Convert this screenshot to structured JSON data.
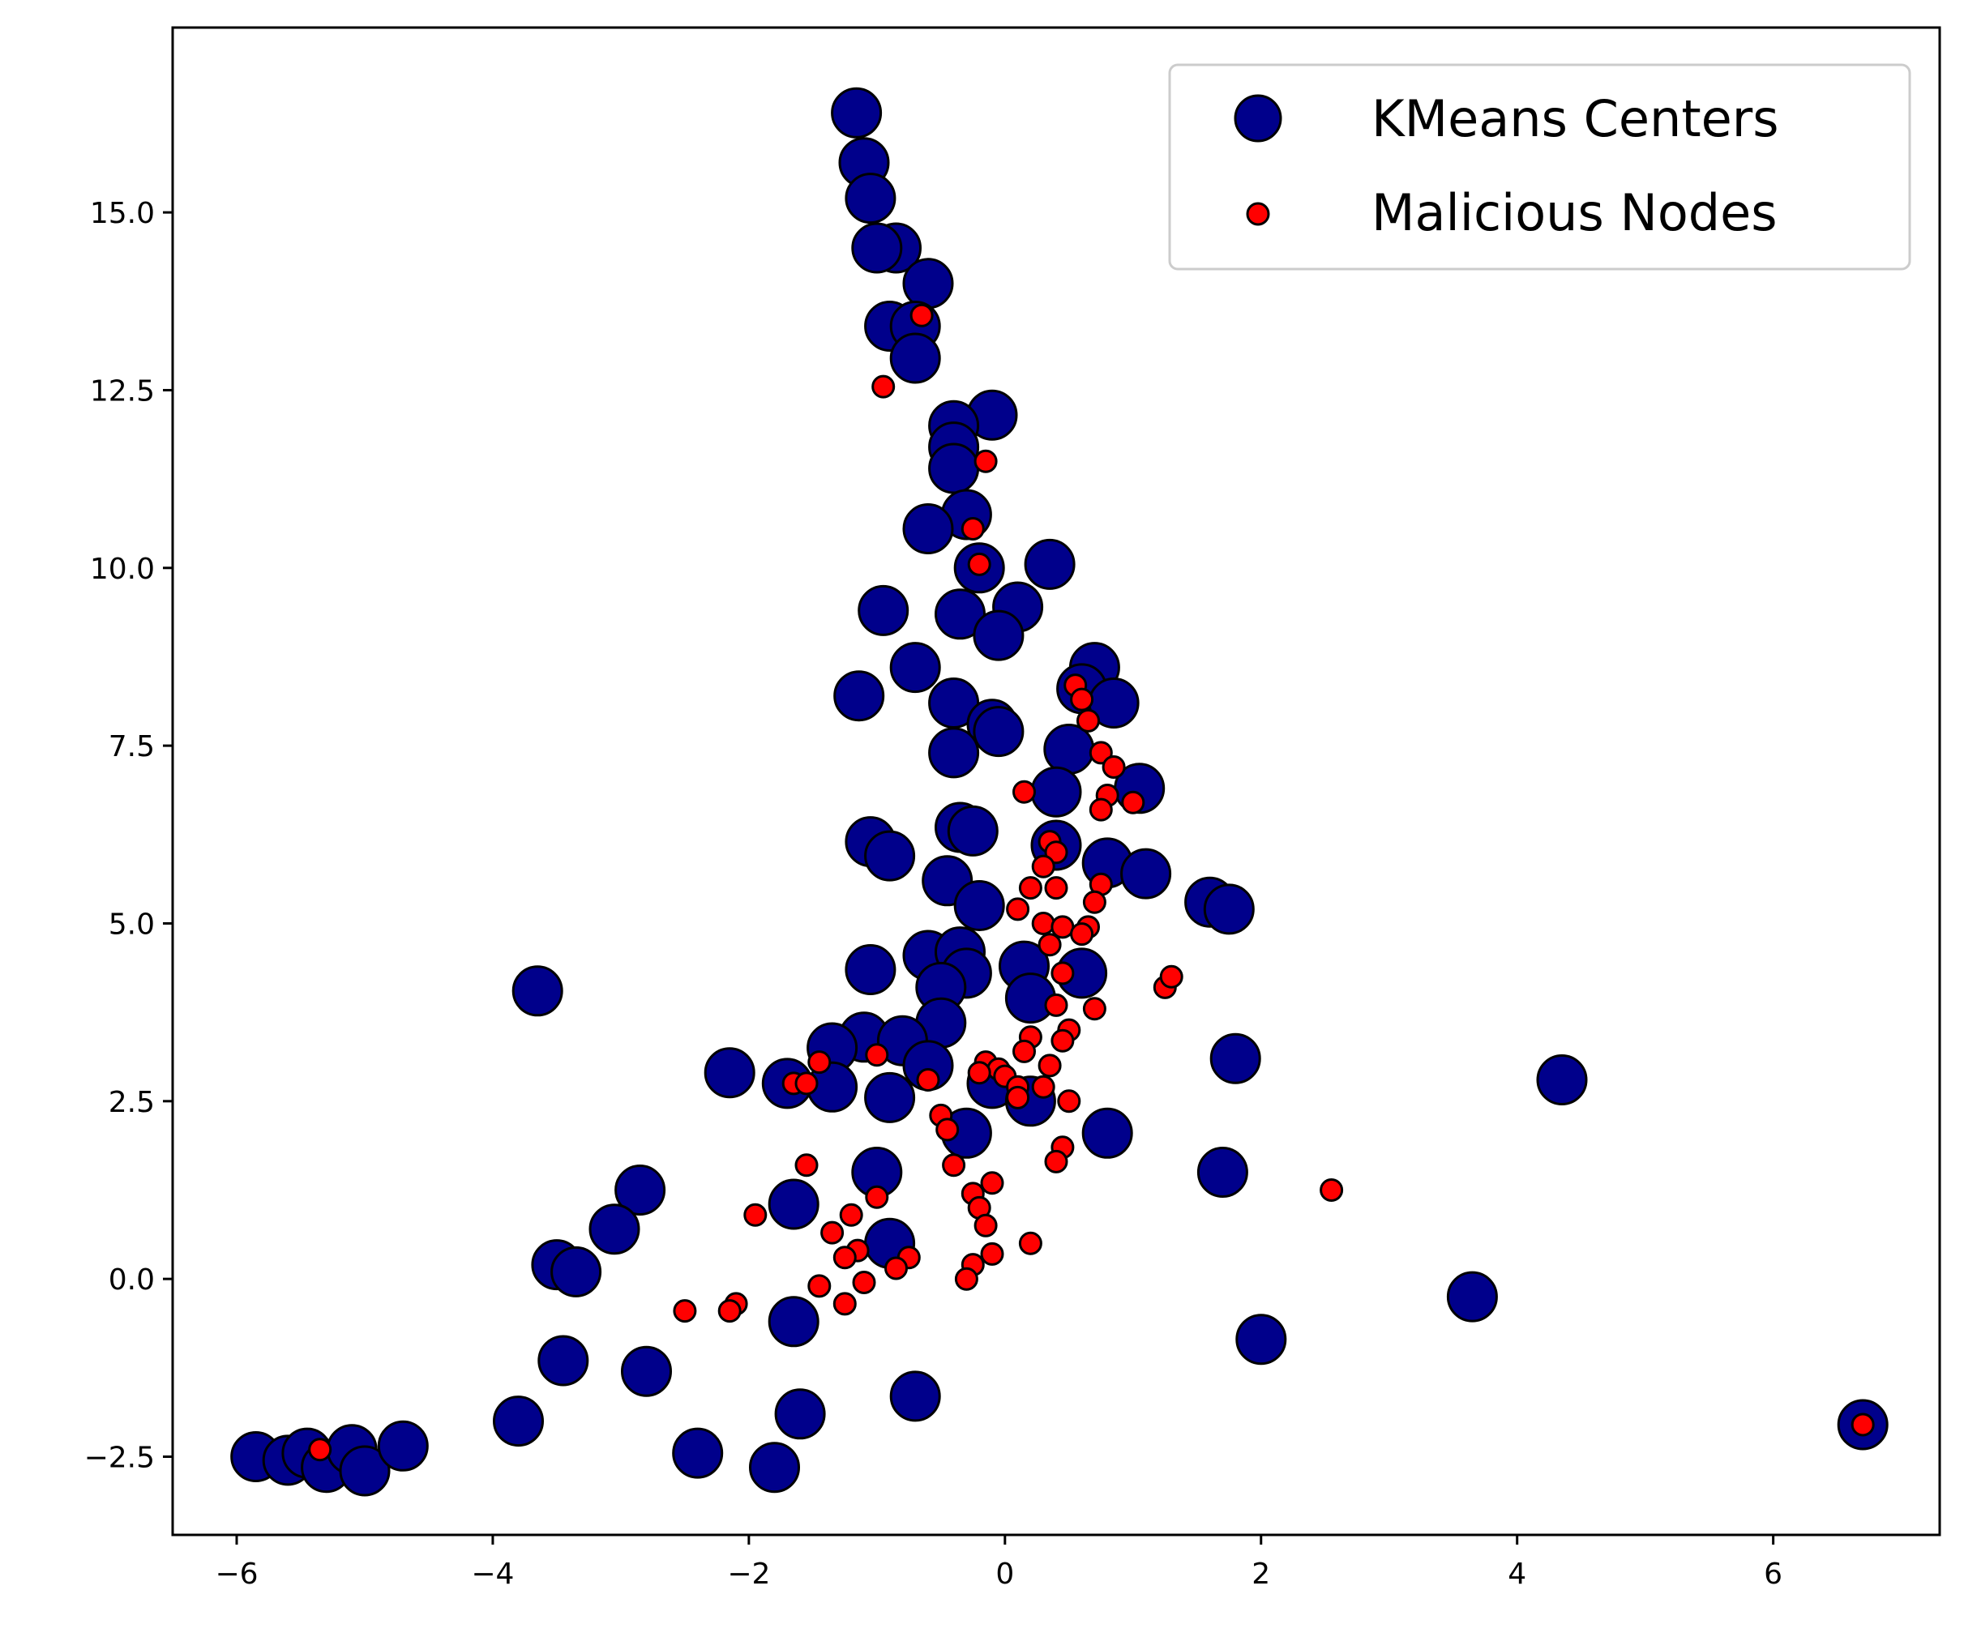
{
  "chart_data": {
    "type": "scatter",
    "title": "",
    "xlabel": "",
    "ylabel": "",
    "xlim": [
      -6.5,
      7.3
    ],
    "ylim": [
      -3.6,
      17.6
    ],
    "grid": false,
    "legend_position": "top-right",
    "x_ticks": [
      -6,
      -4,
      -2,
      0,
      2,
      4,
      6
    ],
    "x_tick_labels": [
      "−6",
      "−4",
      "−2",
      "0",
      "2",
      "4",
      "6"
    ],
    "y_ticks": [
      -2.5,
      0.0,
      2.5,
      5.0,
      7.5,
      10.0,
      12.5,
      15.0
    ],
    "y_tick_labels": [
      "−2.5",
      "0.0",
      "2.5",
      "5.0",
      "7.5",
      "10.0",
      "12.5",
      "15.0"
    ],
    "series": [
      {
        "name": "KMeans Centers",
        "color": "#00008b",
        "edge_color": "#000000",
        "marker_size": "large",
        "points": [
          [
            -1.16,
            16.4
          ],
          [
            -1.1,
            15.7
          ],
          [
            -1.05,
            15.2
          ],
          [
            -0.85,
            14.5
          ],
          [
            -1.0,
            14.5
          ],
          [
            -0.6,
            14.0
          ],
          [
            -0.9,
            13.4
          ],
          [
            -0.7,
            13.4
          ],
          [
            -0.7,
            12.95
          ],
          [
            -0.1,
            12.15
          ],
          [
            -0.4,
            12.0
          ],
          [
            -0.4,
            11.7
          ],
          [
            -0.4,
            11.4
          ],
          [
            -0.3,
            10.75
          ],
          [
            -0.6,
            10.55
          ],
          [
            -0.2,
            10.0
          ],
          [
            0.35,
            10.05
          ],
          [
            -0.95,
            9.4
          ],
          [
            -0.35,
            9.35
          ],
          [
            0.1,
            9.45
          ],
          [
            -0.05,
            9.05
          ],
          [
            0.7,
            8.6
          ],
          [
            -0.7,
            8.6
          ],
          [
            0.6,
            8.3
          ],
          [
            0.85,
            8.1
          ],
          [
            -1.14,
            8.2
          ],
          [
            -0.4,
            8.1
          ],
          [
            -0.1,
            7.8
          ],
          [
            -0.05,
            7.7
          ],
          [
            0.5,
            7.45
          ],
          [
            -0.4,
            7.4
          ],
          [
            1.05,
            6.9
          ],
          [
            0.4,
            6.85
          ],
          [
            -0.35,
            6.35
          ],
          [
            -0.25,
            6.3
          ],
          [
            -1.05,
            6.15
          ],
          [
            -0.9,
            5.95
          ],
          [
            0.4,
            6.1
          ],
          [
            0.8,
            5.85
          ],
          [
            1.1,
            5.7
          ],
          [
            -0.45,
            5.6
          ],
          [
            1.6,
            5.3
          ],
          [
            1.75,
            5.2
          ],
          [
            -0.2,
            5.25
          ],
          [
            -0.6,
            4.55
          ],
          [
            -0.35,
            4.6
          ],
          [
            0.15,
            4.4
          ],
          [
            -0.3,
            4.3
          ],
          [
            -1.05,
            4.35
          ],
          [
            0.6,
            4.3
          ],
          [
            -0.5,
            4.1
          ],
          [
            0.2,
            3.95
          ],
          [
            -3.65,
            4.05
          ],
          [
            -0.5,
            3.6
          ],
          [
            -1.1,
            3.4
          ],
          [
            -0.8,
            3.35
          ],
          [
            -1.35,
            3.25
          ],
          [
            -0.6,
            3.0
          ],
          [
            -2.15,
            2.9
          ],
          [
            -1.7,
            2.75
          ],
          [
            -1.35,
            2.7
          ],
          [
            -0.9,
            2.55
          ],
          [
            -0.1,
            2.75
          ],
          [
            0.2,
            2.5
          ],
          [
            1.8,
            3.1
          ],
          [
            4.35,
            2.8
          ],
          [
            -0.3,
            2.05
          ],
          [
            0.8,
            2.05
          ],
          [
            -1.0,
            1.5
          ],
          [
            1.7,
            1.5
          ],
          [
            -1.65,
            1.05
          ],
          [
            -2.85,
            1.25
          ],
          [
            -3.05,
            0.7
          ],
          [
            -3.5,
            0.2
          ],
          [
            -3.35,
            0.1
          ],
          [
            -0.9,
            0.5
          ],
          [
            -1.65,
            -0.6
          ],
          [
            3.65,
            -0.25
          ],
          [
            2.0,
            -0.85
          ],
          [
            -3.45,
            -1.15
          ],
          [
            -2.8,
            -1.3
          ],
          [
            -3.8,
            -2.0
          ],
          [
            -0.7,
            -1.65
          ],
          [
            -1.6,
            -1.9
          ],
          [
            -5.85,
            -2.5
          ],
          [
            -5.6,
            -2.55
          ],
          [
            -5.45,
            -2.45
          ],
          [
            -5.3,
            -2.65
          ],
          [
            -5.1,
            -2.4
          ],
          [
            -5.0,
            -2.7
          ],
          [
            -4.7,
            -2.35
          ],
          [
            -2.4,
            -2.45
          ],
          [
            -1.8,
            -2.65
          ],
          [
            6.7,
            -2.05
          ]
        ]
      },
      {
        "name": "Malicious Nodes",
        "color": "#ff0000",
        "edge_color": "#000000",
        "marker_size": "small",
        "points": [
          [
            -0.65,
            13.55
          ],
          [
            -0.95,
            12.55
          ],
          [
            -0.15,
            11.5
          ],
          [
            -0.25,
            10.55
          ],
          [
            -0.2,
            10.05
          ],
          [
            0.55,
            8.35
          ],
          [
            0.6,
            8.15
          ],
          [
            0.65,
            7.85
          ],
          [
            0.75,
            7.4
          ],
          [
            0.85,
            7.2
          ],
          [
            0.8,
            6.8
          ],
          [
            0.75,
            6.6
          ],
          [
            1.0,
            6.7
          ],
          [
            0.15,
            6.85
          ],
          [
            0.35,
            6.15
          ],
          [
            0.4,
            6.0
          ],
          [
            0.3,
            5.8
          ],
          [
            0.2,
            5.5
          ],
          [
            0.4,
            5.5
          ],
          [
            0.75,
            5.55
          ],
          [
            0.7,
            5.3
          ],
          [
            0.1,
            5.2
          ],
          [
            0.3,
            5.0
          ],
          [
            0.45,
            4.95
          ],
          [
            0.65,
            4.95
          ],
          [
            0.6,
            4.85
          ],
          [
            0.35,
            4.7
          ],
          [
            0.45,
            4.3
          ],
          [
            1.25,
            4.1
          ],
          [
            1.3,
            4.25
          ],
          [
            0.4,
            3.85
          ],
          [
            0.7,
            3.8
          ],
          [
            0.5,
            3.5
          ],
          [
            0.45,
            3.35
          ],
          [
            0.2,
            3.4
          ],
          [
            0.15,
            3.2
          ],
          [
            0.35,
            3.0
          ],
          [
            -0.15,
            3.05
          ],
          [
            -0.05,
            2.95
          ],
          [
            0.0,
            2.85
          ],
          [
            -0.2,
            2.9
          ],
          [
            0.1,
            2.7
          ],
          [
            0.3,
            2.7
          ],
          [
            0.1,
            2.55
          ],
          [
            0.5,
            2.5
          ],
          [
            -0.6,
            2.8
          ],
          [
            -1.45,
            3.05
          ],
          [
            -1.65,
            2.75
          ],
          [
            -1.55,
            2.75
          ],
          [
            -1.0,
            3.15
          ],
          [
            -0.5,
            2.3
          ],
          [
            -0.45,
            2.1
          ],
          [
            -0.4,
            1.6
          ],
          [
            -1.55,
            1.6
          ],
          [
            0.45,
            1.85
          ],
          [
            0.4,
            1.65
          ],
          [
            -0.1,
            1.35
          ],
          [
            -0.25,
            1.2
          ],
          [
            -0.2,
            1.0
          ],
          [
            -1.0,
            1.15
          ],
          [
            -1.95,
            0.9
          ],
          [
            -1.2,
            0.9
          ],
          [
            -1.35,
            0.65
          ],
          [
            -0.15,
            0.75
          ],
          [
            -1.15,
            0.4
          ],
          [
            -1.25,
            0.3
          ],
          [
            -0.75,
            0.3
          ],
          [
            -0.85,
            0.15
          ],
          [
            -0.25,
            0.2
          ],
          [
            -0.1,
            0.35
          ],
          [
            0.2,
            0.5
          ],
          [
            -1.1,
            -0.05
          ],
          [
            -1.45,
            -0.1
          ],
          [
            -1.25,
            -0.35
          ],
          [
            -0.3,
            0.0
          ],
          [
            -2.1,
            -0.35
          ],
          [
            -2.15,
            -0.45
          ],
          [
            -2.5,
            -0.45
          ],
          [
            2.55,
            1.25
          ],
          [
            -5.35,
            -2.4
          ],
          [
            6.7,
            -2.05
          ]
        ]
      }
    ],
    "legend": [
      {
        "label": "KMeans Centers",
        "marker": "large-navy-circle"
      },
      {
        "label": "Malicious Nodes",
        "marker": "small-red-circle"
      }
    ]
  }
}
